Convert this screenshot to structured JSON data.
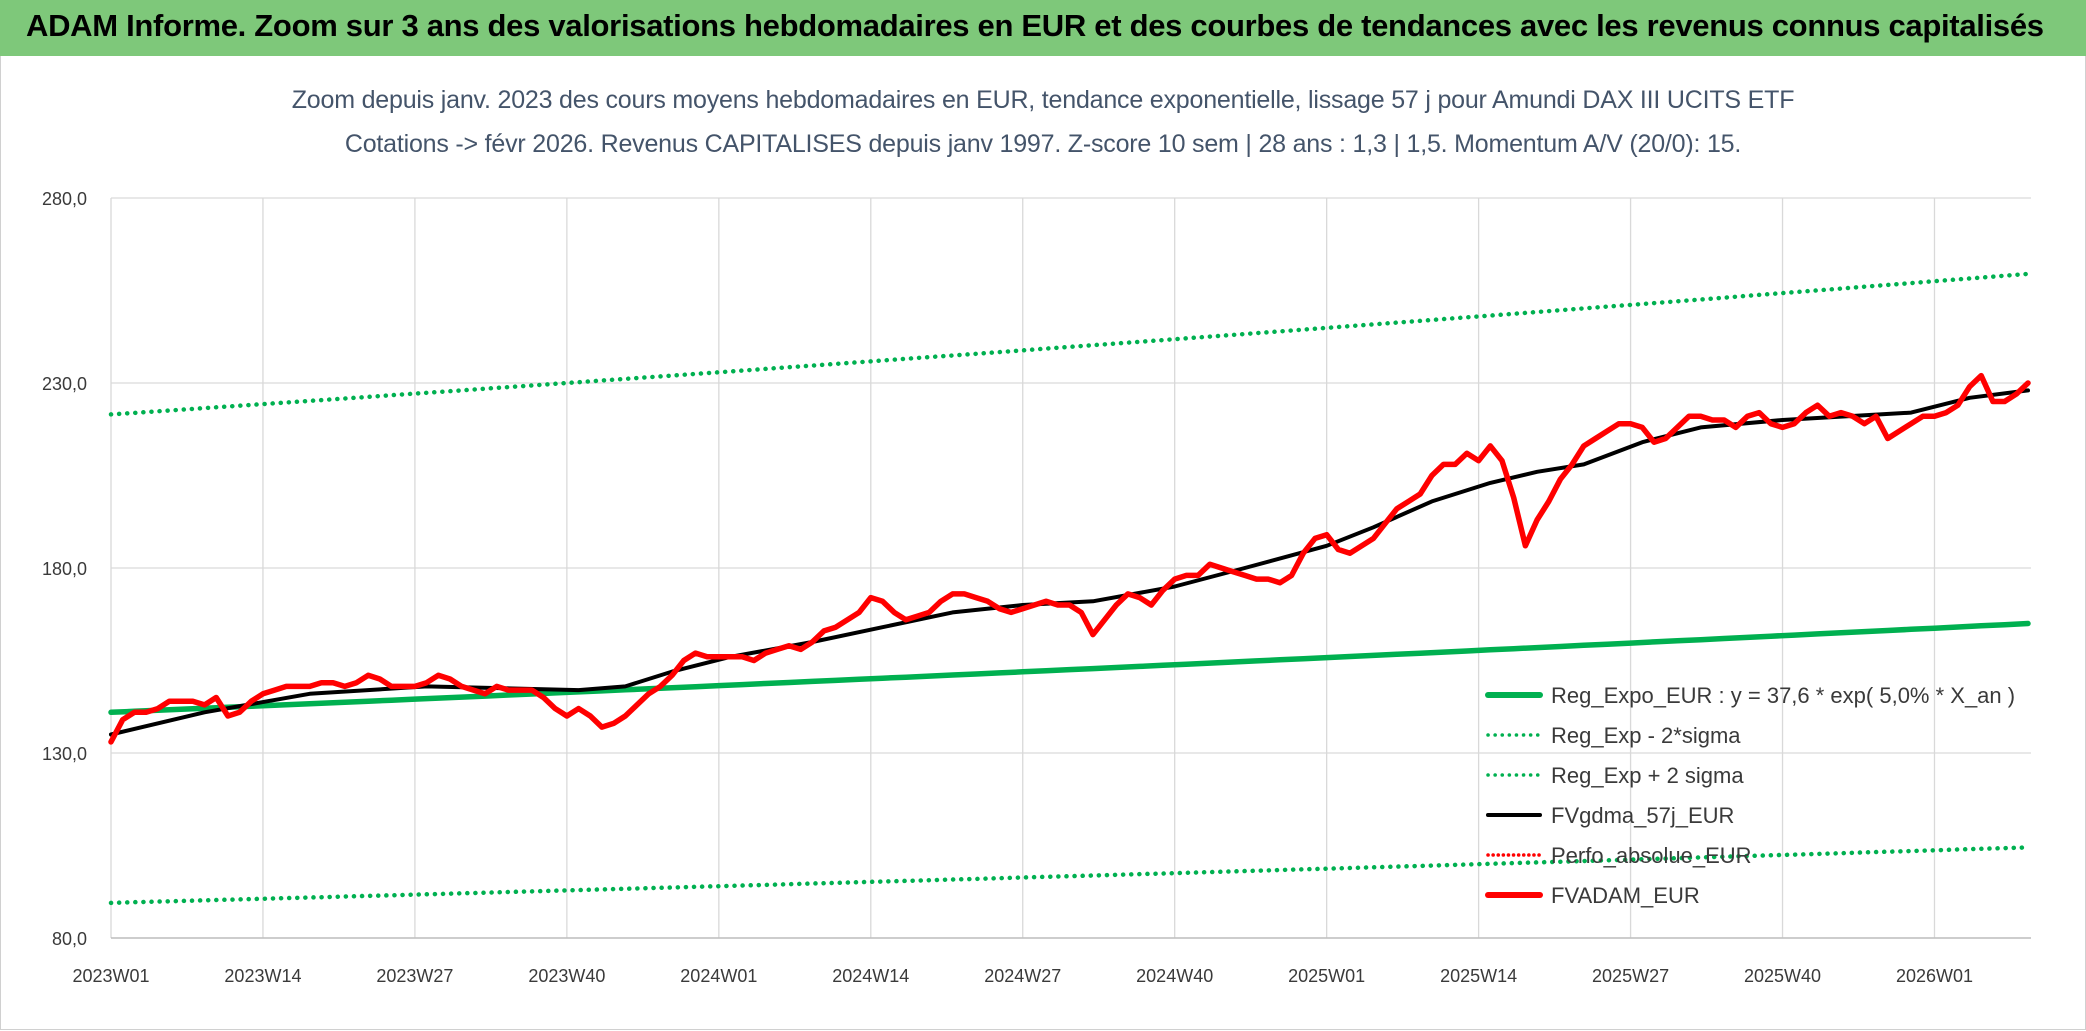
{
  "header": {
    "title": "ADAM Informe. Zoom sur 3 ans des valorisations hebdomadaires en EUR et des courbes de tendances avec les revenus connus capitalisés"
  },
  "chart_data": {
    "type": "line",
    "title": "Zoom depuis janv. 2023 des cours moyens hebdomadaires en EUR, tendance exponentielle, lissage 57 j pour Amundi DAX III UCITS ETF",
    "subtitle": "Cotations -> févr 2026. Revenus CAPITALISES depuis janv 1997. Z-score 10 sem | 28 ans : 1,3 | 1,5. Momentum A/V (20/0): 15.",
    "xlabel": "",
    "ylabel": "",
    "ylim": [
      80,
      280
    ],
    "y_ticks": [
      "80,0",
      "130,0",
      "180,0",
      "230,0",
      "280,0"
    ],
    "x_ticks": [
      "2023W01",
      "2023W14",
      "2023W27",
      "2023W40",
      "2024W01",
      "2024W14",
      "2024W27",
      "2024W40",
      "2025W01",
      "2025W14",
      "2025W27",
      "2025W40",
      "2026W01"
    ],
    "grid": true,
    "legend_position": "bottom-right",
    "week_count": 165,
    "series": [
      {
        "name": "Reg_Expo_EUR : y = 37,6 * exp( 5,0% *  X_an )",
        "color": "#00b050",
        "style": "solid-thick",
        "start": 141,
        "end": 165
      },
      {
        "name": "Reg_Exp - 2*sigma",
        "color": "#00b050",
        "style": "dotted",
        "start": 89.5,
        "end": 104.5
      },
      {
        "name": "Reg_Exp + 2 sigma",
        "color": "#00b050",
        "style": "dotted",
        "start": 221.5,
        "end": 259.5
      },
      {
        "name": "FVgdma_57j_EUR",
        "color": "#000000",
        "style": "solid",
        "points": [
          [
            0,
            135
          ],
          [
            8,
            141
          ],
          [
            17,
            146
          ],
          [
            27,
            148
          ],
          [
            40,
            147
          ],
          [
            44,
            148
          ],
          [
            48,
            152
          ],
          [
            53,
            156
          ],
          [
            60,
            160
          ],
          [
            66,
            164
          ],
          [
            72,
            168
          ],
          [
            78,
            170
          ],
          [
            84,
            171
          ],
          [
            91,
            175
          ],
          [
            97,
            180
          ],
          [
            104,
            186
          ],
          [
            108,
            191
          ],
          [
            113,
            198
          ],
          [
            118,
            203
          ],
          [
            122,
            206
          ],
          [
            126,
            208
          ],
          [
            131,
            214
          ],
          [
            136,
            218
          ],
          [
            143,
            220
          ],
          [
            154,
            222
          ],
          [
            159,
            226
          ],
          [
            164,
            228
          ]
        ]
      },
      {
        "name": "Perfo_absolue_EUR",
        "color": "#ff0000",
        "style": "dotted",
        "points": []
      },
      {
        "name": "FVADAM_EUR",
        "color": "#ff0000",
        "style": "solid-thick",
        "points": [
          [
            0,
            133
          ],
          [
            1,
            139
          ],
          [
            2,
            141
          ],
          [
            3,
            141
          ],
          [
            4,
            142
          ],
          [
            5,
            144
          ],
          [
            6,
            144
          ],
          [
            7,
            144
          ],
          [
            8,
            143
          ],
          [
            9,
            145
          ],
          [
            10,
            140
          ],
          [
            11,
            141
          ],
          [
            12,
            144
          ],
          [
            13,
            146
          ],
          [
            14,
            147
          ],
          [
            15,
            148
          ],
          [
            16,
            148
          ],
          [
            17,
            148
          ],
          [
            18,
            149
          ],
          [
            19,
            149
          ],
          [
            20,
            148
          ],
          [
            21,
            149
          ],
          [
            22,
            151
          ],
          [
            23,
            150
          ],
          [
            24,
            148
          ],
          [
            25,
            148
          ],
          [
            26,
            148
          ],
          [
            27,
            149
          ],
          [
            28,
            151
          ],
          [
            29,
            150
          ],
          [
            30,
            148
          ],
          [
            31,
            147
          ],
          [
            32,
            146
          ],
          [
            33,
            148
          ],
          [
            34,
            147
          ],
          [
            35,
            147
          ],
          [
            36,
            147
          ],
          [
            37,
            145
          ],
          [
            38,
            142
          ],
          [
            39,
            140
          ],
          [
            40,
            142
          ],
          [
            41,
            140
          ],
          [
            42,
            137
          ],
          [
            43,
            138
          ],
          [
            44,
            140
          ],
          [
            45,
            143
          ],
          [
            46,
            146
          ],
          [
            47,
            148
          ],
          [
            48,
            151
          ],
          [
            49,
            155
          ],
          [
            50,
            157
          ],
          [
            51,
            156
          ],
          [
            52,
            156
          ],
          [
            53,
            156
          ],
          [
            54,
            156
          ],
          [
            55,
            155
          ],
          [
            56,
            157
          ],
          [
            57,
            158
          ],
          [
            58,
            159
          ],
          [
            59,
            158
          ],
          [
            60,
            160
          ],
          [
            61,
            163
          ],
          [
            62,
            164
          ],
          [
            63,
            166
          ],
          [
            64,
            168
          ],
          [
            65,
            172
          ],
          [
            66,
            171
          ],
          [
            67,
            168
          ],
          [
            68,
            166
          ],
          [
            69,
            167
          ],
          [
            70,
            168
          ],
          [
            71,
            171
          ],
          [
            72,
            173
          ],
          [
            73,
            173
          ],
          [
            74,
            172
          ],
          [
            75,
            171
          ],
          [
            76,
            169
          ],
          [
            77,
            168
          ],
          [
            78,
            169
          ],
          [
            79,
            170
          ],
          [
            80,
            171
          ],
          [
            81,
            170
          ],
          [
            82,
            170
          ],
          [
            83,
            168
          ],
          [
            84,
            162
          ],
          [
            85,
            166
          ],
          [
            86,
            170
          ],
          [
            87,
            173
          ],
          [
            88,
            172
          ],
          [
            89,
            170
          ],
          [
            90,
            174
          ],
          [
            91,
            177
          ],
          [
            92,
            178
          ],
          [
            93,
            178
          ],
          [
            94,
            181
          ],
          [
            95,
            180
          ],
          [
            96,
            179
          ],
          [
            97,
            178
          ],
          [
            98,
            177
          ],
          [
            99,
            177
          ],
          [
            100,
            176
          ],
          [
            101,
            178
          ],
          [
            102,
            184
          ],
          [
            103,
            188
          ],
          [
            104,
            189
          ],
          [
            105,
            185
          ],
          [
            106,
            184
          ],
          [
            107,
            186
          ],
          [
            108,
            188
          ],
          [
            109,
            192
          ],
          [
            110,
            196
          ],
          [
            111,
            198
          ],
          [
            112,
            200
          ],
          [
            113,
            205
          ],
          [
            114,
            208
          ],
          [
            115,
            208
          ],
          [
            116,
            211
          ],
          [
            117,
            209
          ],
          [
            118,
            213
          ],
          [
            119,
            209
          ],
          [
            120,
            199
          ],
          [
            121,
            186
          ],
          [
            122,
            193
          ],
          [
            123,
            198
          ],
          [
            124,
            204
          ],
          [
            125,
            208
          ],
          [
            126,
            213
          ],
          [
            127,
            215
          ],
          [
            128,
            217
          ],
          [
            129,
            219
          ],
          [
            130,
            219
          ],
          [
            131,
            218
          ],
          [
            132,
            214
          ],
          [
            133,
            215
          ],
          [
            134,
            218
          ],
          [
            135,
            221
          ],
          [
            136,
            221
          ],
          [
            137,
            220
          ],
          [
            138,
            220
          ],
          [
            139,
            218
          ],
          [
            140,
            221
          ],
          [
            141,
            222
          ],
          [
            142,
            219
          ],
          [
            143,
            218
          ],
          [
            144,
            219
          ],
          [
            145,
            222
          ],
          [
            146,
            224
          ],
          [
            147,
            221
          ],
          [
            148,
            222
          ],
          [
            149,
            221
          ],
          [
            150,
            219
          ],
          [
            151,
            221
          ],
          [
            152,
            215
          ],
          [
            153,
            217
          ],
          [
            154,
            219
          ],
          [
            155,
            221
          ],
          [
            156,
            221
          ],
          [
            157,
            222
          ],
          [
            158,
            224
          ],
          [
            159,
            229
          ],
          [
            160,
            232
          ],
          [
            161,
            225
          ],
          [
            162,
            225
          ],
          [
            163,
            227
          ],
          [
            164,
            230
          ]
        ]
      }
    ]
  }
}
